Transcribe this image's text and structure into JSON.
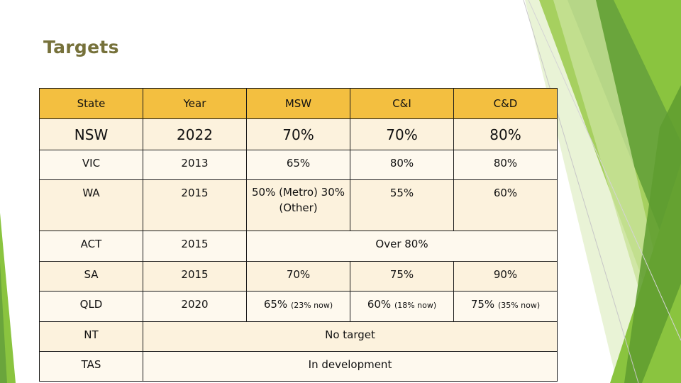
{
  "slide": {
    "title": "Targets"
  },
  "table": {
    "headers": [
      "State",
      "Year",
      "MSW",
      "C&I",
      "C&D"
    ],
    "rows": {
      "nsw": {
        "state": "NSW",
        "year": "2022",
        "msw": "70%",
        "ci": "70%",
        "cd": "80%"
      },
      "vic": {
        "state": "VIC",
        "year": "2013",
        "msw": "65%",
        "ci": "80%",
        "cd": "80%"
      },
      "wa": {
        "state": "WA",
        "year": "2015",
        "msw": "50% (Metro) 30% (Other)",
        "ci": "55%",
        "cd": "60%"
      },
      "act": {
        "state": "ACT",
        "year": "2015",
        "merged": "Over 80%"
      },
      "sa": {
        "state": "SA",
        "year": "2015",
        "msw": "70%",
        "ci": "75%",
        "cd": "90%"
      },
      "qld": {
        "state": "QLD",
        "year": "2020",
        "msw": "65%",
        "msw_note": "(23% now)",
        "ci": "60%",
        "ci_note": "(18% now)",
        "cd": "75%",
        "cd_note": "(35% now)"
      },
      "nt": {
        "state": "NT",
        "merged": "No target"
      },
      "tas": {
        "state": "TAS",
        "merged": "In development"
      }
    }
  },
  "colors": {
    "title": "#76713a",
    "header_bg": "#f3bf40",
    "row_bg_a": "#fcf2dd",
    "row_bg_b": "#fef9ee",
    "accent_green": "#8bc43f"
  }
}
